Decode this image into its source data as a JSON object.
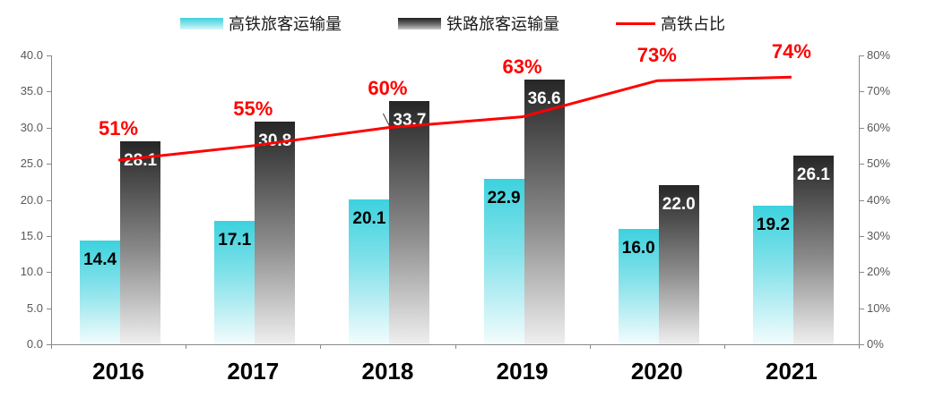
{
  "legend": {
    "items": [
      {
        "label": "高铁旅客运输量",
        "swatch": "cyan-gradient-bar"
      },
      {
        "label": "铁路旅客运输量",
        "swatch": "dark-gradient-bar"
      },
      {
        "label": "高铁占比",
        "swatch": "red-line"
      }
    ]
  },
  "colors": {
    "bar1_top": "#3CD2DE",
    "bar1_mid": "#86E2EA",
    "bar1_bottom": "#F3FCFD",
    "bar2_top": "#262626",
    "bar2_mid": "#8C8C8C",
    "bar2_bottom": "#EFEFEF",
    "line": "#FF0000",
    "pct_label": "#FF0000",
    "axis_text": "#595959",
    "axis_line": "#898989",
    "year_text": "#000000",
    "bar1_label": "#000000",
    "bar2_label": "#FFFFFF"
  },
  "chart_data": {
    "type": "bar+line",
    "title": "",
    "categories": [
      "2016",
      "2017",
      "2018",
      "2019",
      "2020",
      "2021"
    ],
    "series": [
      {
        "name": "高铁旅客运输量",
        "type": "bar",
        "axis": "left",
        "values": [
          14.4,
          17.1,
          20.1,
          22.9,
          16.0,
          19.2
        ],
        "labels": [
          "14.4",
          "17.1",
          "20.1",
          "22.9",
          "16.0",
          "19.2"
        ]
      },
      {
        "name": "铁路旅客运输量",
        "type": "bar",
        "axis": "left",
        "values": [
          28.1,
          30.8,
          33.7,
          36.6,
          22.0,
          26.1
        ],
        "labels": [
          "28.1",
          "30.8",
          "33.7",
          "36.6",
          "22.0",
          "26.1"
        ]
      },
      {
        "name": "高铁占比",
        "type": "line",
        "axis": "right",
        "values": [
          51,
          55,
          60,
          63,
          73,
          74
        ],
        "labels": [
          "51%",
          "55%",
          "60%",
          "63%",
          "73%",
          "74%"
        ]
      }
    ],
    "left_axis": {
      "min": 0,
      "max": 40,
      "step": 5,
      "tick_labels": [
        "0.0",
        "5.0",
        "10.0",
        "15.0",
        "20.0",
        "25.0",
        "30.0",
        "35.0",
        "40.0"
      ]
    },
    "right_axis": {
      "min": 0,
      "max": 80,
      "step": 10,
      "tick_labels": [
        "0%",
        "10%",
        "20%",
        "30%",
        "40%",
        "50%",
        "60%",
        "70%",
        "80%"
      ]
    },
    "grid": false,
    "legend_position": "top"
  }
}
